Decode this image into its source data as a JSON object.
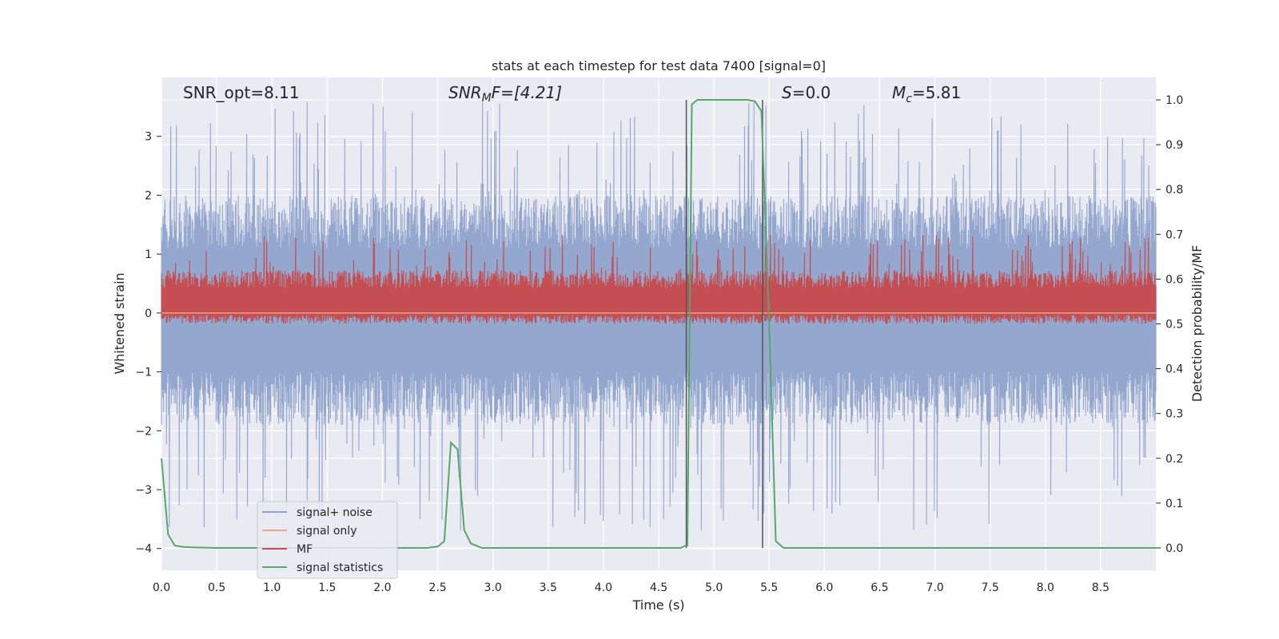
{
  "chart_data": {
    "type": "line",
    "title": "stats at each timestep for test data 7400 [signal=0]",
    "xlabel": "Time (s)",
    "ylabel_left": "Whitened strain",
    "ylabel_right": "Detection probability/MF",
    "xlim": [
      0.0,
      9.0
    ],
    "ylim_left": [
      -4.37,
      4.0
    ],
    "ylim_right": [
      -0.05,
      1.05
    ],
    "x_ticks": [
      "0.0",
      "0.5",
      "1.0",
      "1.5",
      "2.0",
      "2.5",
      "3.0",
      "3.5",
      "4.0",
      "4.5",
      "5.0",
      "5.5",
      "6.0",
      "6.5",
      "7.0",
      "7.5",
      "8.0",
      "8.5"
    ],
    "y_ticks_left": [
      "−4",
      "−3",
      "−2",
      "−1",
      "0",
      "1",
      "2",
      "3"
    ],
    "y_ticks_right": [
      "0.0",
      "0.1",
      "0.2",
      "0.3",
      "0.4",
      "0.5",
      "0.6",
      "0.7",
      "0.8",
      "0.9",
      "1.0"
    ],
    "grid": true,
    "legend": {
      "placement": "lower-left",
      "entries": [
        {
          "label": "signal+ noise",
          "color": "#8fa3cb"
        },
        {
          "label": "signal only",
          "color": "#e8a589"
        },
        {
          "label": "MF",
          "color": "#c44e52"
        },
        {
          "label": "signal statistics",
          "color": "#55a868"
        }
      ]
    },
    "annotations": {
      "snr_opt": "SNR_opt=8.11",
      "snr_mf_sym": "SNR",
      "snr_mf_sub": "M",
      "snr_mf_rest": "F=[4.21]",
      "s_sym": "S",
      "s_rest": "=0.0",
      "mc_sym": "M",
      "mc_sub": "c",
      "mc_rest": "=5.81"
    },
    "vertical_lines": [
      4.75,
      5.44
    ],
    "series": [
      {
        "name": "signal+ noise",
        "axis": "left",
        "color": "#8fa3cb",
        "kind": "noise",
        "band_low": -1.9,
        "band_high": 2.0,
        "peak_max": 3.6,
        "trough_min": -3.7
      },
      {
        "name": "signal only",
        "axis": "left",
        "color": "#e8a589",
        "x": [
          0.0,
          9.0
        ],
        "y": [
          0.0,
          0.0
        ]
      },
      {
        "name": "MF",
        "axis": "right",
        "color": "#c44e52",
        "kind": "noise",
        "band_low": 0.52,
        "band_high": 0.62,
        "peak_max": 0.7
      },
      {
        "name": "signal statistics",
        "axis": "right",
        "color": "#55a868",
        "x": [
          0.0,
          0.06,
          0.12,
          0.2,
          0.3,
          0.5,
          1.0,
          1.5,
          2.0,
          2.4,
          2.5,
          2.56,
          2.62,
          2.68,
          2.74,
          2.8,
          2.9,
          3.0,
          3.5,
          4.0,
          4.5,
          4.7,
          4.74,
          4.76,
          4.8,
          4.85,
          5.0,
          5.2,
          5.3,
          5.37,
          5.43,
          5.5,
          5.56,
          5.63,
          5.7,
          6.0,
          7.0,
          8.0,
          9.0
        ],
        "y": [
          0.2,
          0.03,
          0.005,
          0.002,
          0.001,
          0.0,
          0.0,
          0.0,
          0.0,
          0.0,
          0.003,
          0.015,
          0.235,
          0.22,
          0.04,
          0.01,
          0.0,
          0.0,
          0.0,
          0.0,
          0.0,
          0.0,
          0.005,
          0.005,
          0.99,
          1.0,
          1.0,
          1.0,
          1.0,
          0.997,
          0.975,
          0.5,
          0.015,
          0.0,
          0.0,
          0.0,
          0.0,
          0.0,
          0.0
        ]
      }
    ]
  }
}
